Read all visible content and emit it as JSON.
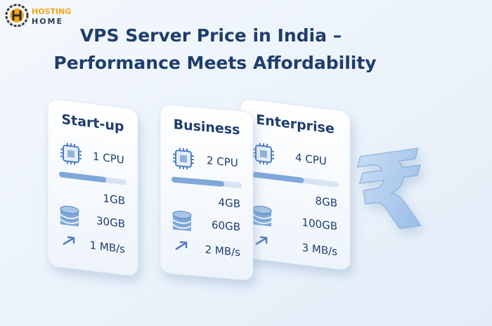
{
  "logo": {
    "line1": "HOSTING",
    "line2": "HOME"
  },
  "title": {
    "line1": "VPS Server Price in India –",
    "line2": "Performance Meets Affordability"
  },
  "cards": [
    {
      "name": "Start-up",
      "cpu": "1 CPU",
      "ram": "1GB",
      "storage": "30GB",
      "speed": "1 MB/s"
    },
    {
      "name": "Business",
      "cpu": "2 CPU",
      "ram": "4GB",
      "storage": "60GB",
      "speed": "2 MB/s"
    },
    {
      "name": "Enterprise",
      "cpu": "4 CPU",
      "ram": "8GB",
      "storage": "100GB",
      "speed": "3 MB/s"
    }
  ],
  "symbol": "₹"
}
